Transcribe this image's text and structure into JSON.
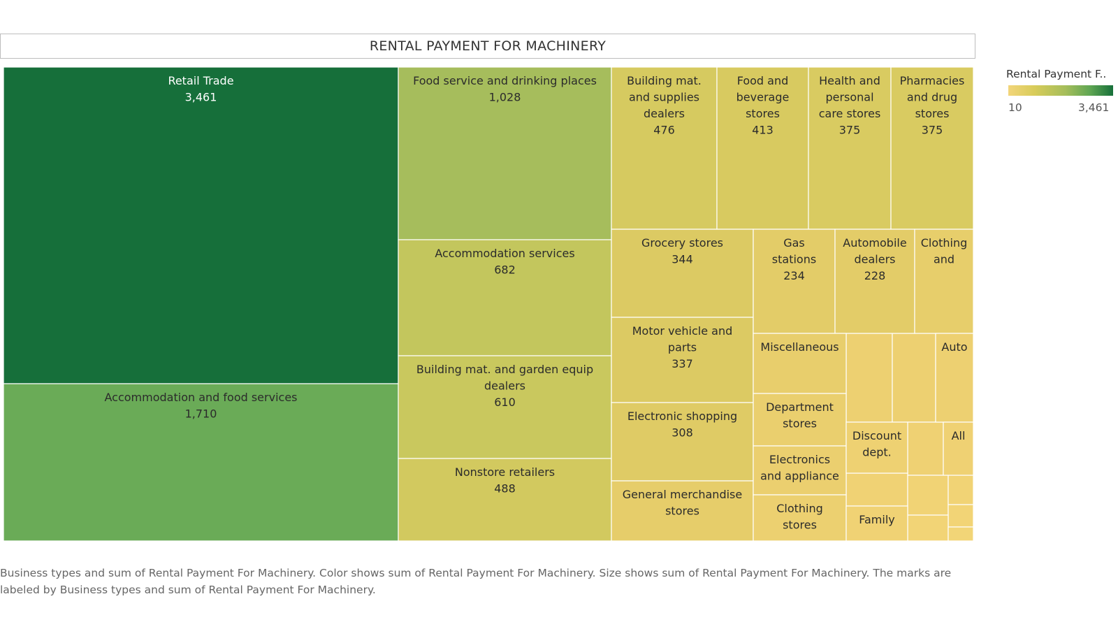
{
  "chart_data": {
    "type": "treemap",
    "title": "RENTAL PAYMENT FOR MACHINERY",
    "legend": {
      "title": "Rental Payment F..",
      "min_label": "10",
      "max_label": "3,461",
      "min": 10,
      "max": 3461,
      "placement": "right"
    },
    "caption": "Business types and sum of Rental Payment For Machinery.  Color shows sum of Rental Payment For Machinery.  Size shows sum of Rental Payment For Machinery.  The marks are labeled by Business types and sum of Rental Payment For Machinery.",
    "colors": {
      "low": "#f2d57a",
      "high": "#17703a"
    },
    "items": [
      {
        "label": "Retail Trade",
        "value_label": "3,461",
        "value": 3461
      },
      {
        "label": "Accommodation and food services",
        "value_label": "1,710",
        "value": 1710
      },
      {
        "label": "Food service and drinking places",
        "value_label": "1,028",
        "value": 1028
      },
      {
        "label": "Accommodation services",
        "value_label": "682",
        "value": 682
      },
      {
        "label": "Building mat. and garden equip dealers",
        "value_label": "610",
        "value": 610
      },
      {
        "label": "Nonstore retailers",
        "value_label": "488",
        "value": 488
      },
      {
        "label": "Building mat. and supplies dealers",
        "value_label": "476",
        "value": 476
      },
      {
        "label": "Food and beverage stores",
        "value_label": "413",
        "value": 413
      },
      {
        "label": "Health and personal care stores",
        "value_label": "375",
        "value": 375
      },
      {
        "label": "Pharmacies and drug stores",
        "value_label": "375",
        "value": 375
      },
      {
        "label": "Grocery stores",
        "value_label": "344",
        "value": 344
      },
      {
        "label": "Motor vehicle and parts",
        "value_label": "337",
        "value": 337
      },
      {
        "label": "Electronic shopping",
        "value_label": "308",
        "value": 308
      },
      {
        "label": "Gas stations",
        "value_label": "234",
        "value": 234
      },
      {
        "label": "Automobile dealers",
        "value_label": "228",
        "value": 228
      },
      {
        "label": "General merchandise stores",
        "value_label": "",
        "value": null
      },
      {
        "label": "Clothing and",
        "value_label": "",
        "value": null
      },
      {
        "label": "Miscellaneous",
        "value_label": "",
        "value": null
      },
      {
        "label": "Department stores",
        "value_label": "",
        "value": null
      },
      {
        "label": "Electronics and appliance",
        "value_label": "",
        "value": null
      },
      {
        "label": "Clothing stores",
        "value_label": "",
        "value": null
      },
      {
        "label": "Auto",
        "value_label": "",
        "value": null
      },
      {
        "label": "Discount dept.",
        "value_label": "",
        "value": null
      },
      {
        "label": "All",
        "value_label": "",
        "value": null
      },
      {
        "label": "Family",
        "value_label": "",
        "value": null
      }
    ]
  }
}
